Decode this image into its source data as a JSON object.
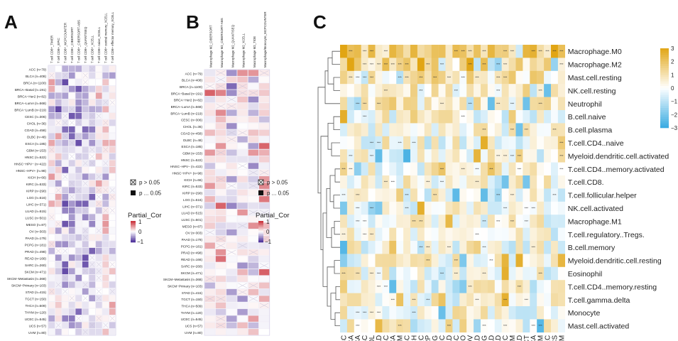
{
  "panels": {
    "A": "A",
    "B": "B",
    "C": "C"
  },
  "chart_data": [
    {
      "type": "heatmap",
      "panel": "A",
      "title": "",
      "columns": [
        "T cell CD8+_TIMER",
        "T cell CD8+_EPIC",
        "T cell CD8+_MCPCOUNTER",
        "T cell CD8+_CIBERSORT",
        "T cell CD8+_CIBERSORT-ABS",
        "T cell CD8+_QUANTISEQ",
        "T cell CD8+_XCELL",
        "T cell CD8+ naive_XCELL",
        "T cell CD8+ central memory_XCELL",
        "T cell CD8+ effector memory_XCELL"
      ],
      "rows": [
        "ACC (n=79)",
        "BLCA (n=408)",
        "BRCA (n=1100)",
        "BRCA−Basal (n=191)",
        "BRCA−Her2 (n=82)",
        "BRCA−LumA (n=568)",
        "BRCA−LumB (n=219)",
        "CESC (n=306)",
        "CHOL (n=36)",
        "COAD (n=458)",
        "DLBC (n=48)",
        "ESCA (n=185)",
        "GBM (n=153)",
        "HNSC (n=522)",
        "HNSC−HPV− (n=422)",
        "HNSC−HPV+ (n=98)",
        "KICH (n=66)",
        "KIRC (n=533)",
        "KIRP (n=290)",
        "LGG (n=516)",
        "LIHC (n=371)",
        "LUAD (n=515)",
        "LUSC (n=501)",
        "MESO (n=87)",
        "OV (n=303)",
        "PAAD (n=179)",
        "PCPG (n=181)",
        "PRAD (n=498)",
        "READ (n=166)",
        "SARC (n=260)",
        "SKCM (n=471)",
        "SKCM−Metastasis (n=368)",
        "SKCM−Primary (n=103)",
        "STAD (n=415)",
        "TGCT (n=150)",
        "THCA (n=509)",
        "THYM (n=120)",
        "UCEC (n=545)",
        "UCS (n=57)",
        "UVM (n=80)"
      ],
      "legend_sig": [
        "p > 0.05",
        "p ... 0.05"
      ],
      "colorbar_title": "Partial_Cor",
      "colorbar_ticks": [
        "1",
        "0",
        "−1"
      ]
    },
    {
      "type": "heatmap",
      "panel": "B",
      "title": "",
      "columns": [
        "Macrophage M2_CIBERSORT",
        "Macrophage M2_CIBERSORT-ABS",
        "Macrophage M2_QUANTISEQ",
        "Macrophage M2_XCELL",
        "Macrophage M2_TIDE",
        "Macrophage/Monocyte_MCPCOUNTER"
      ],
      "rows": [
        "ACC (n=79)",
        "BLCA (n=408)",
        "BRCA (n=1100)",
        "BRCA−Basal (n=191)",
        "BRCA−Her2 (n=82)",
        "BRCA−LumA (n=568)",
        "BRCA−LumB (n=219)",
        "CESC (n=306)",
        "CHOL (n=36)",
        "COAD (n=458)",
        "DLBC (n=48)",
        "ESCA (n=185)",
        "GBM (n=153)",
        "HNSC (n=522)",
        "HNSC−HPV− (n=422)",
        "HNSC−HPV+ (n=98)",
        "KICH (n=66)",
        "KIRC (n=533)",
        "KIRP (n=290)",
        "LGG (n=516)",
        "LIHC (n=371)",
        "LUAD (n=515)",
        "LUSC (n=501)",
        "MESO (n=87)",
        "OV (n=303)",
        "PAAD (n=179)",
        "PCPG (n=181)",
        "PRAD (n=498)",
        "READ (n=166)",
        "SARC (n=260)",
        "SKCM (n=471)",
        "SKCM−Metastasis (n=368)",
        "SKCM−Primary (n=103)",
        "STAD (n=415)",
        "TGCT (n=150)",
        "THCA (n=509)",
        "THYM (n=120)",
        "UCEC (n=545)",
        "UCS (n=57)",
        "UVM (n=80)"
      ],
      "legend_sig": [
        "p > 0.05",
        "p ... 0.05"
      ],
      "colorbar_title": "Partial_Cor",
      "colorbar_ticks": [
        "1",
        "0",
        "−1"
      ]
    },
    {
      "type": "heatmap",
      "panel": "C",
      "title": "",
      "columns": [
        "ACC",
        "BLCA",
        "BRCA",
        "CESC",
        "CHOL",
        "COAD",
        "DLBC",
        "ESCA",
        "GBM",
        "HNSC",
        "KICH",
        "KIRC",
        "KIRP",
        "LGG",
        "LIHC",
        "LUAD",
        "LUSC",
        "MESO",
        "OV",
        "PAAD",
        "PCPG",
        "PRAD",
        "READ",
        "SARC",
        "SKCM",
        "STAD",
        "TGCT",
        "THCA",
        "THYM",
        "UCEC",
        "UCS",
        "UVM"
      ],
      "rows": [
        "Macrophage.M0",
        "Macrophage.M2",
        "Mast.cell.resting",
        "NK.cell.resting",
        "Neutrophil",
        "B.cell.naive",
        "B.cell.plasma",
        "T.cell.CD4..naive",
        "Myeloid.dendritic.cell.activated",
        "T.cell.CD4..memory.activated",
        "T.cell.CD8.",
        "T.cell.follicular.helper",
        "NK.cell.activated",
        "Macrophage.M1",
        "T.cell.regulatory..Tregs.",
        "B.cell.memory",
        "Myeloid.dendritic.cell.resting",
        "Eosinophil",
        "T.cell.CD4..memory.resting",
        "T.cell.gamma.delta",
        "Monocyte",
        "Mast.cell.activated"
      ],
      "colorbar_ticks": [
        "3",
        "2",
        "1",
        "0",
        "−1",
        "−2",
        "−3"
      ],
      "vmin": -3,
      "vmax": 3
    }
  ]
}
